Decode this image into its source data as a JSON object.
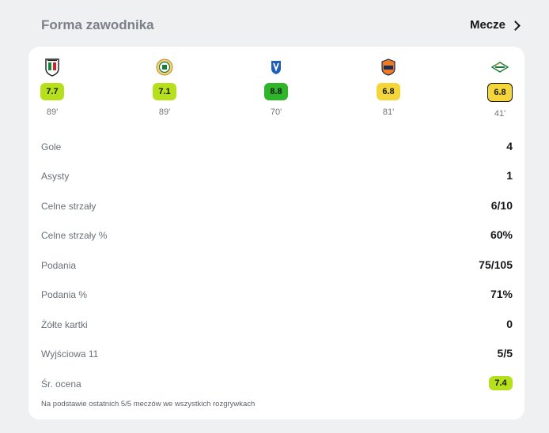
{
  "header": {
    "title": "Forma zawodnika",
    "link_label": "Mecze"
  },
  "matches": [
    {
      "crest": "legia-crest-icon",
      "rating": "7.7",
      "rating_color": "#b6e01c",
      "minutes": "89'",
      "selected": false
    },
    {
      "crest": "zaglebie-crest-icon",
      "rating": "7.1",
      "rating_color": "#b6e01c",
      "minutes": "89'",
      "selected": false
    },
    {
      "crest": "lech-crest-icon",
      "rating": "8.8",
      "rating_color": "#2fb52a",
      "minutes": "70'",
      "selected": false
    },
    {
      "crest": "bruk-bet-crest-icon",
      "rating": "6.8",
      "rating_color": "#f5d63a",
      "minutes": "81'",
      "selected": false
    },
    {
      "crest": "lechia-crest-icon",
      "rating": "6.8",
      "rating_color": "#f5d63a",
      "minutes": "41'",
      "selected": true
    }
  ],
  "stats": [
    {
      "label": "Gole",
      "value": "4"
    },
    {
      "label": "Asysty",
      "value": "1"
    },
    {
      "label": "Celne strzały",
      "value": "6/10"
    },
    {
      "label": "Celne strzały %",
      "value": "60%"
    },
    {
      "label": "Podania",
      "value": "75/105"
    },
    {
      "label": "Podania %",
      "value": "71%"
    },
    {
      "label": "Żółte kartki",
      "value": "0"
    },
    {
      "label": "Wyjściowa 11",
      "value": "5/5"
    }
  ],
  "average": {
    "label": "Śr. ocena",
    "value": "7.4",
    "color": "#b6e01c"
  },
  "footnote": "Na podstawie ostatnich 5/5 meczów we wszystkich rozgrywkach"
}
